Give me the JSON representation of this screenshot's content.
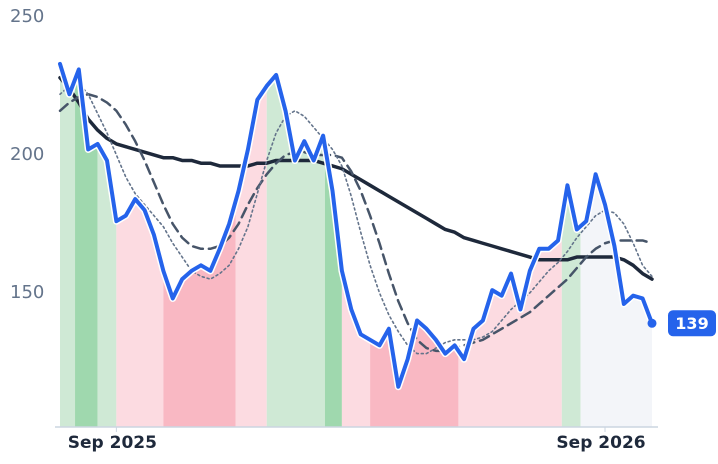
{
  "chart_data": {
    "type": "line",
    "categories": [
      null,
      null,
      null,
      null,
      null,
      null,
      "Sep 2025",
      null,
      null,
      null,
      null,
      null,
      null,
      null,
      null,
      null,
      null,
      null,
      null,
      null,
      null,
      null,
      null,
      null,
      null,
      null,
      null,
      null,
      null,
      null,
      null,
      null,
      null,
      null,
      null,
      null,
      null,
      null,
      null,
      null,
      null,
      null,
      null,
      null,
      null,
      null,
      null,
      null,
      null,
      null,
      null,
      null,
      null,
      null,
      null,
      null,
      null,
      null,
      "Sep 2026",
      null,
      null,
      null,
      null,
      null
    ],
    "ylim": [
      101.4,
      250
    ],
    "yticks": [
      150,
      200,
      250
    ],
    "series": [
      {
        "color": "#1e293b",
        "style": "solid",
        "width": 3.5,
        "values": [
          228,
          224,
          219,
          213,
          209,
          206,
          204,
          203,
          202,
          201,
          200,
          199,
          199,
          198,
          198,
          197,
          197,
          196,
          196,
          196,
          196,
          197,
          197,
          198,
          198,
          198,
          198,
          198,
          197,
          196,
          195,
          193,
          191,
          189,
          187,
          185,
          183,
          181,
          179,
          177,
          175,
          173,
          172,
          170,
          169,
          168,
          167,
          166,
          165,
          164,
          163,
          162,
          162,
          162,
          162,
          163,
          163,
          163,
          163,
          163,
          162,
          160,
          157,
          155
        ]
      },
      {
        "color": "#475569",
        "style": "dashed",
        "width": 2.5,
        "values": [
          216,
          219,
          221,
          222,
          221,
          219,
          216,
          211,
          205,
          198,
          190,
          182,
          175,
          170,
          167,
          166,
          166,
          167,
          170,
          175,
          182,
          188,
          193,
          197,
          200,
          201,
          201,
          200,
          200,
          200,
          199,
          194,
          187,
          178,
          168,
          157,
          147,
          139,
          133,
          130,
          129,
          129,
          130,
          131,
          132,
          133,
          135,
          137,
          139,
          141,
          143,
          146,
          149,
          152,
          155,
          159,
          163,
          166,
          168,
          169,
          169,
          169,
          169,
          168
        ]
      },
      {
        "color": "#64748b",
        "style": "dotted",
        "width": 1.6,
        "values": [
          222,
          225,
          226,
          222,
          215,
          208,
          200,
          192,
          186,
          182,
          178,
          174,
          168,
          163,
          158,
          156,
          155,
          157,
          160,
          166,
          174,
          186,
          198,
          208,
          214,
          216,
          214,
          210,
          206,
          202,
          196,
          185,
          172,
          160,
          150,
          142,
          136,
          131,
          128,
          128,
          130,
          132,
          133,
          133,
          133,
          134,
          136,
          140,
          144,
          147,
          150,
          154,
          158,
          161,
          165,
          170,
          174,
          178,
          180,
          179,
          175,
          168,
          160,
          156
        ]
      },
      {
        "color": "#2563eb",
        "style": "solid",
        "width": 4,
        "label_last": true,
        "values": [
          233,
          222,
          231,
          202,
          204,
          198,
          176,
          178,
          184,
          180,
          171,
          158,
          148,
          155,
          158,
          160,
          158,
          166,
          175,
          187,
          202,
          220,
          225,
          229,
          216,
          198,
          205,
          198,
          207,
          187,
          158,
          144,
          135,
          133,
          131,
          137,
          116,
          126,
          140,
          137,
          133,
          128,
          131,
          126,
          137,
          140,
          151,
          149,
          157,
          144,
          158,
          166,
          166,
          169,
          189,
          173,
          176,
          193,
          182,
          167,
          146,
          149,
          148,
          139
        ]
      }
    ],
    "bands": [
      {
        "from": 0,
        "to": 1.6,
        "color": "#cfe9d5"
      },
      {
        "from": 1.6,
        "to": 4,
        "color": "#9fd8ae"
      },
      {
        "from": 4,
        "to": 6,
        "color": "#cfe9d5"
      },
      {
        "from": 6,
        "to": 11,
        "color": "#fcdbe1"
      },
      {
        "from": 11,
        "to": 18.7,
        "color": "#f9b8c3"
      },
      {
        "from": 18.7,
        "to": 22,
        "color": "#fcdbe1"
      },
      {
        "from": 22,
        "to": 28.2,
        "color": "#cfe9d5"
      },
      {
        "from": 28.2,
        "to": 30,
        "color": "#9fd8ae"
      },
      {
        "from": 30,
        "to": 33,
        "color": "#fcdbe1"
      },
      {
        "from": 33,
        "to": 42.4,
        "color": "#f9b8c3"
      },
      {
        "from": 42.4,
        "to": 53.4,
        "color": "#fcdbe1"
      },
      {
        "from": 53.4,
        "to": 55.4,
        "color": "#cfe9d5"
      },
      {
        "from": 55.4,
        "to": 63,
        "color": "#f3f5f9"
      }
    ]
  }
}
